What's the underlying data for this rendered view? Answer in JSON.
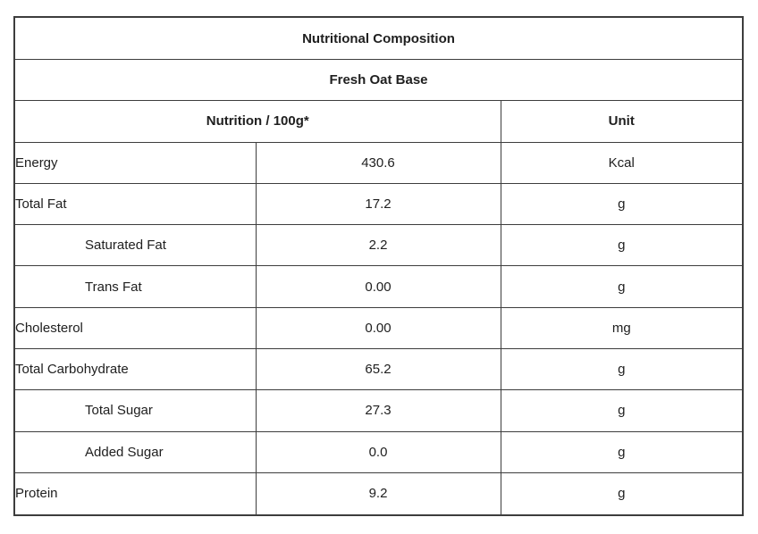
{
  "table": {
    "title": "Nutritional Composition",
    "subtitle": "Fresh Oat Base",
    "columns": {
      "nutrition_header": "Nutrition / 100g*",
      "unit_header": "Unit"
    },
    "rows": [
      {
        "label": "Energy",
        "value": "430.6",
        "unit": "Kcal",
        "indent": false
      },
      {
        "label": "Total Fat",
        "value": "17.2",
        "unit": "g",
        "indent": false
      },
      {
        "label": "Saturated Fat",
        "value": "2.2",
        "unit": "g",
        "indent": true
      },
      {
        "label": "Trans Fat",
        "value": "0.00",
        "unit": "g",
        "indent": true
      },
      {
        "label": "Cholesterol",
        "value": "0.00",
        "unit": "mg",
        "indent": false
      },
      {
        "label": "Total Carbohydrate",
        "value": "65.2",
        "unit": "g",
        "indent": false
      },
      {
        "label": "Total Sugar",
        "value": "27.3",
        "unit": "g",
        "indent": true
      },
      {
        "label": "Added Sugar",
        "value": "0.0",
        "unit": "g",
        "indent": true
      },
      {
        "label": "Protein",
        "value": "9.2",
        "unit": "g",
        "indent": false
      }
    ]
  }
}
